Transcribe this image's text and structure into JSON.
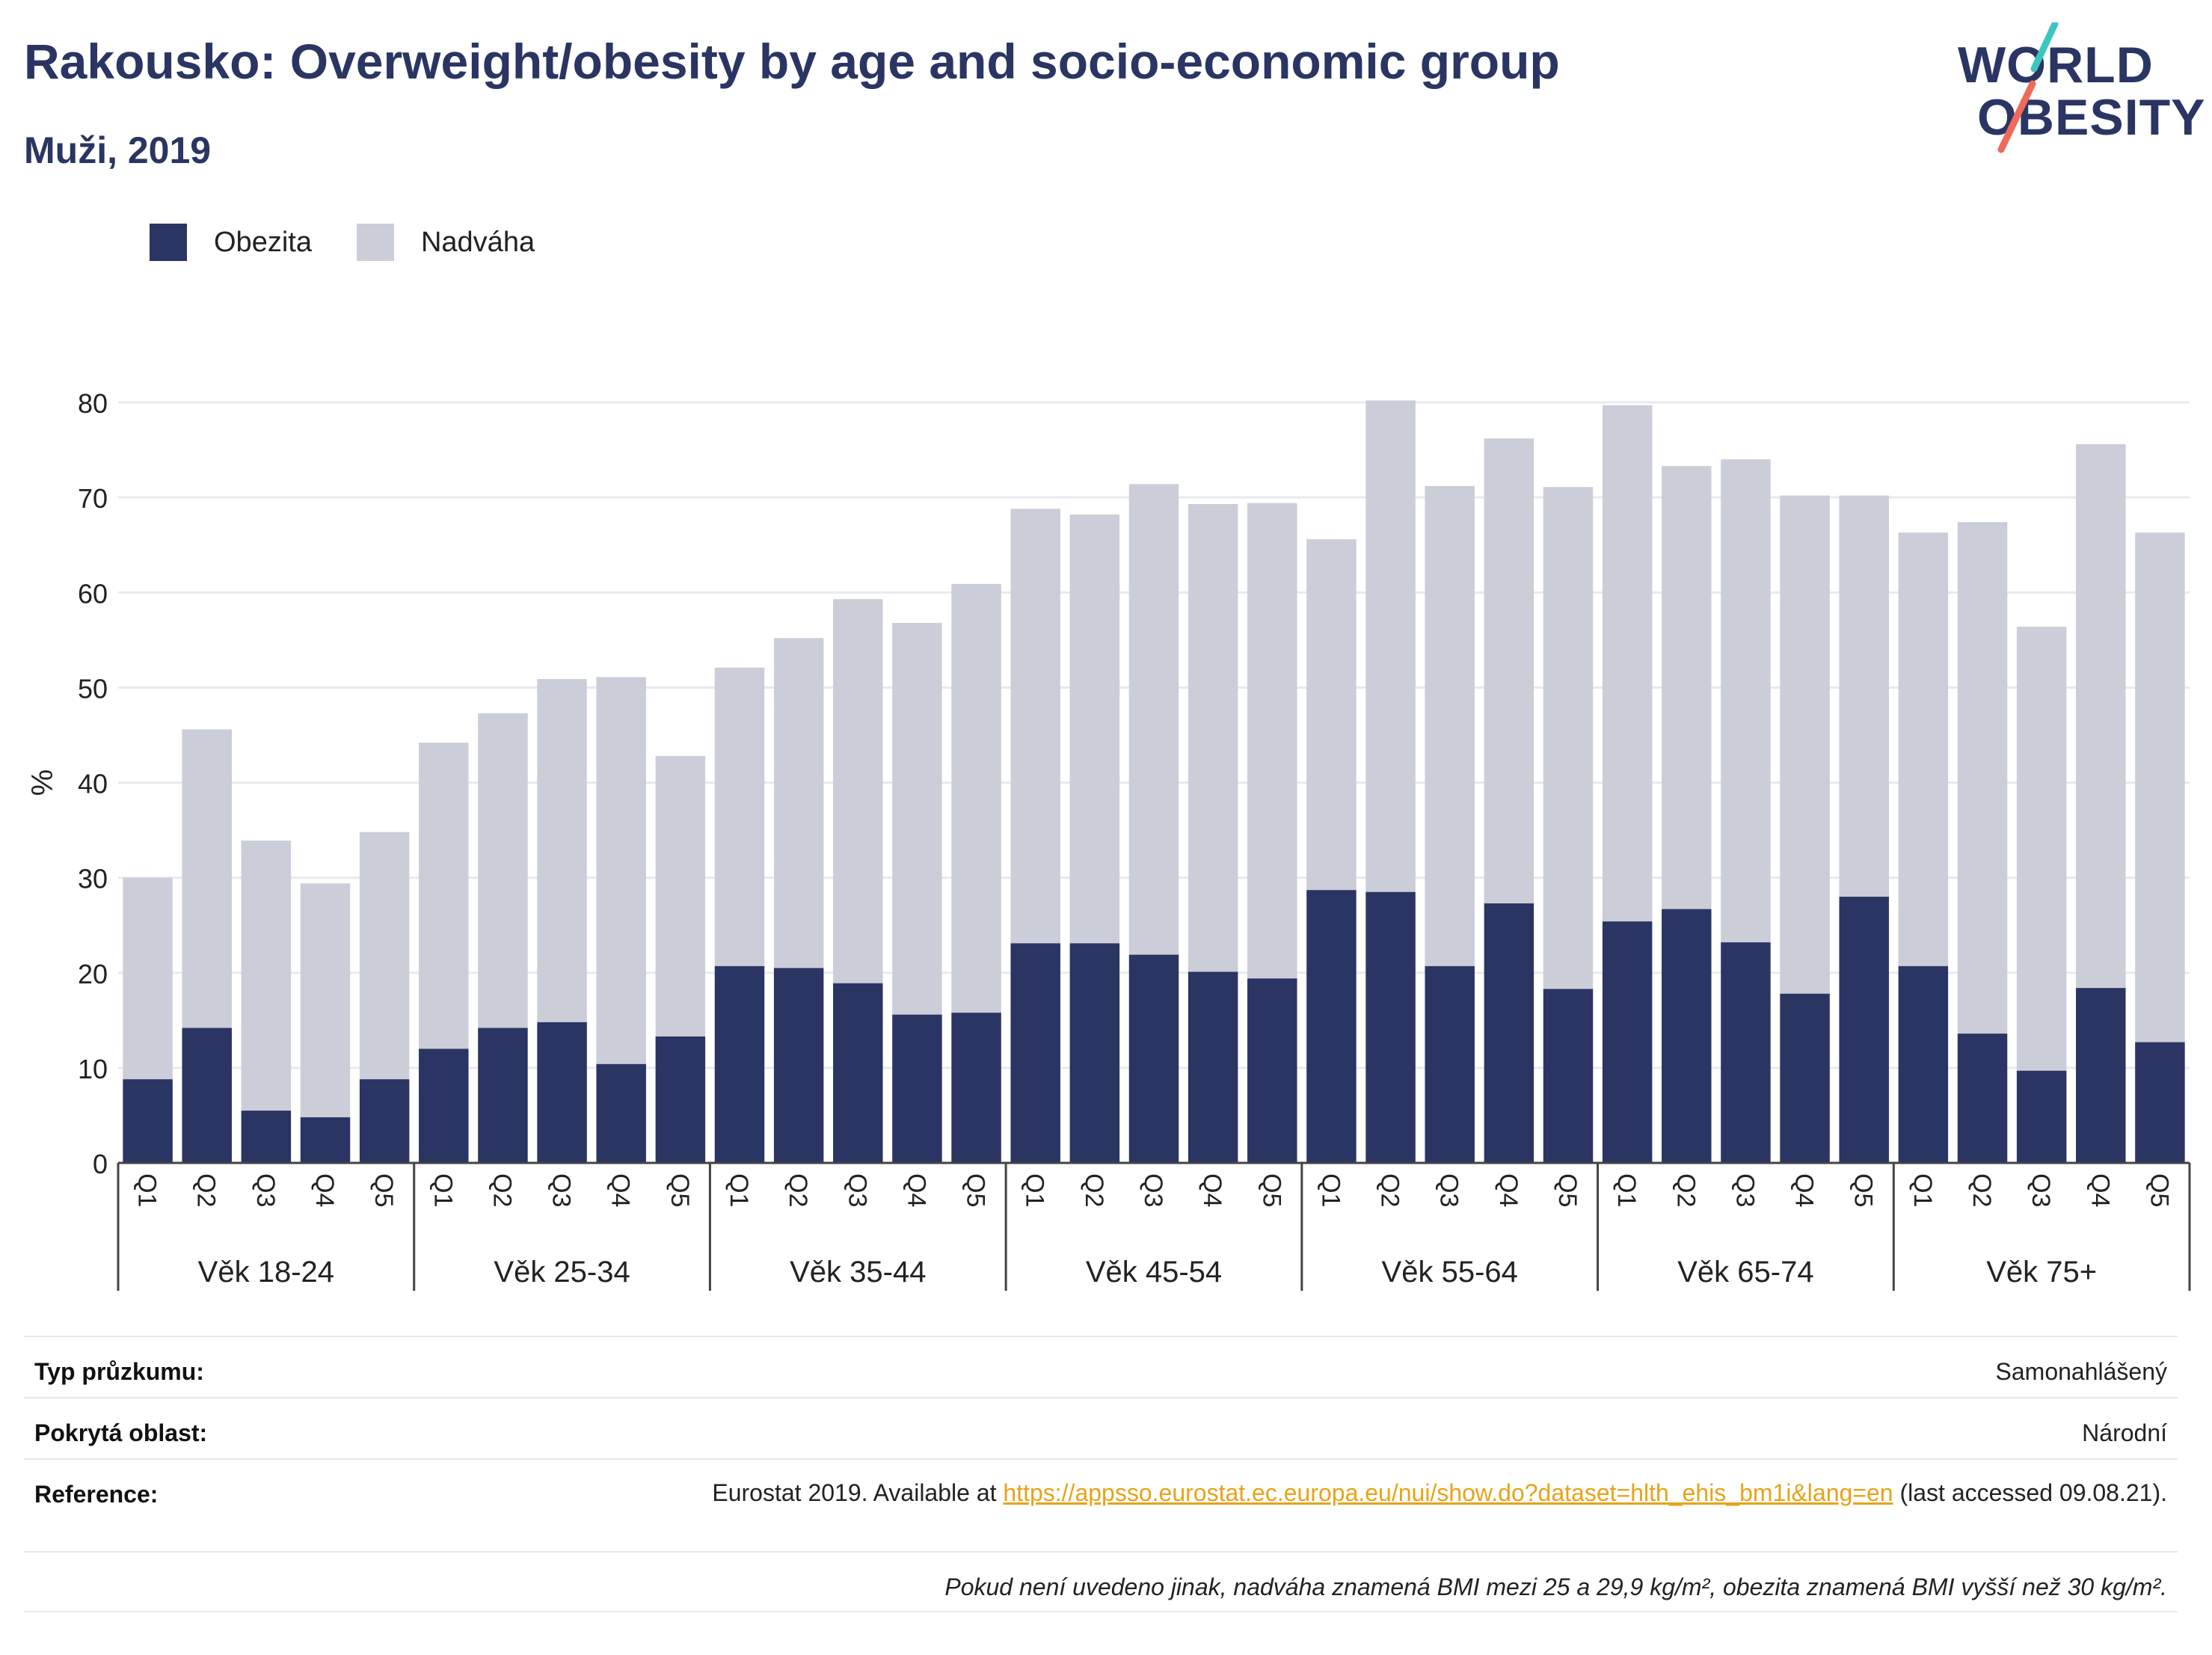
{
  "header": {
    "title": "Rakousko: Overweight/obesity by age and socio-economic group",
    "subtitle": "Muži, 2019"
  },
  "logo": {
    "line1": "WORLD",
    "line2": "OBESITY"
  },
  "colors": {
    "obesity": "#2a3563",
    "overweight": "#cbcdd8",
    "logo_teal": "#3cc6c0",
    "logo_coral": "#ef6a5b",
    "link": "#e8a317"
  },
  "legend": [
    {
      "label": "Obezita",
      "color": "#2a3563"
    },
    {
      "label": "Nadváha",
      "color": "#cbcdd8"
    }
  ],
  "chart_data": {
    "type": "bar",
    "stacked": true,
    "ylabel": "%",
    "ylim": [
      0,
      80
    ],
    "yticks": [
      0,
      10,
      20,
      30,
      40,
      50,
      60,
      70,
      80
    ],
    "grid": true,
    "legend_position": "top-left",
    "groups": [
      "Věk 18-24",
      "Věk 25-34",
      "Věk 35-44",
      "Věk 45-54",
      "Věk 55-64",
      "Věk 65-74",
      "Věk 75+"
    ],
    "subcategories": [
      "Q1",
      "Q2",
      "Q3",
      "Q4",
      "Q5"
    ],
    "series": [
      {
        "name": "Obezita",
        "color": "#2a3563",
        "values": [
          8.8,
          14.2,
          5.5,
          4.8,
          8.8,
          12.0,
          14.2,
          14.8,
          10.4,
          13.3,
          20.7,
          20.5,
          18.9,
          15.6,
          15.8,
          23.1,
          23.1,
          21.9,
          20.1,
          19.4,
          28.7,
          28.5,
          20.7,
          27.3,
          18.3,
          25.4,
          26.7,
          23.2,
          17.8,
          28.0,
          20.7,
          13.6,
          9.7,
          18.4,
          12.7
        ]
      },
      {
        "name": "Nadváha",
        "color": "#cbcdd8",
        "values": [
          21.2,
          31.4,
          28.4,
          24.6,
          26.0,
          32.2,
          33.1,
          36.1,
          40.7,
          29.5,
          31.4,
          34.7,
          40.4,
          41.2,
          45.1,
          45.7,
          45.1,
          49.5,
          49.2,
          50.0,
          36.9,
          51.7,
          50.5,
          48.9,
          52.8,
          54.3,
          46.6,
          50.8,
          52.4,
          42.2,
          45.6,
          53.8,
          46.7,
          57.2,
          53.6
        ]
      }
    ]
  },
  "info": {
    "survey_type_label": "Typ průzkumu:",
    "survey_type_value": "Samonahlášený",
    "coverage_label": "Pokrytá oblast:",
    "coverage_value": "Národní",
    "reference_label": "Reference:",
    "reference_prefix": "Eurostat 2019. Available at ",
    "reference_link": "https://appsso.eurostat.ec.europa.eu/nui/show.do?dataset=hlth_ehis_bm1i&lang=en",
    "reference_suffix": " (last accessed 09.08.21).",
    "note": "Pokud není uvedeno jinak, nadváha znamená BMI mezi 25 a 29,9 kg/m², obezita znamená BMI vyšší než 30 kg/m²."
  }
}
